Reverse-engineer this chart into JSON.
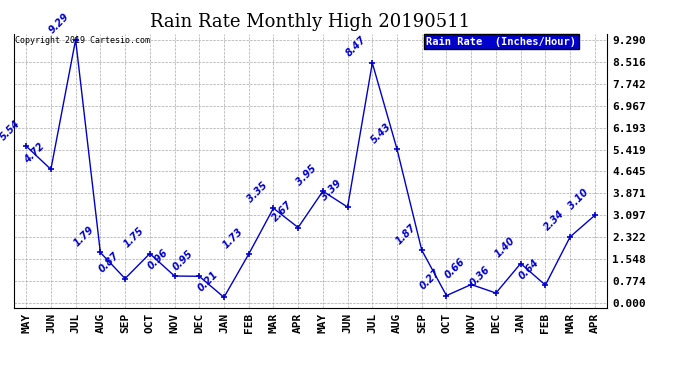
{
  "title": "Rain Rate Monthly High 20190511",
  "ylabel": "Rain Rate  (Inches/Hour)",
  "copyright": "Copyright 2019 Cartesio.com",
  "months": [
    "MAY",
    "JUN",
    "JUL",
    "AUG",
    "SEP",
    "OCT",
    "NOV",
    "DEC",
    "JAN",
    "FEB",
    "MAR",
    "APR",
    "MAY",
    "JUN",
    "JUL",
    "AUG",
    "SEP",
    "OCT",
    "NOV",
    "DEC",
    "JAN",
    "FEB",
    "MAR",
    "APR"
  ],
  "values": [
    5.54,
    4.72,
    9.29,
    1.79,
    0.87,
    1.75,
    0.96,
    0.95,
    0.21,
    1.73,
    3.35,
    2.67,
    3.95,
    3.39,
    8.47,
    5.43,
    1.87,
    0.27,
    0.66,
    0.36,
    1.4,
    0.64,
    2.34,
    3.1
  ],
  "labels": [
    "5.54",
    "4.72",
    "9.29",
    "1.79",
    "0.87",
    "1.75",
    "0.96",
    "0.95",
    "0.21",
    "1.73",
    "3.35",
    "2.67",
    "3.95",
    "3.39",
    "8.47",
    "5.43",
    "1.87",
    "0.27",
    "0.66",
    "0.36",
    "1.40",
    "0.64",
    "2.34",
    "3.10"
  ],
  "line_color": "#0000cc",
  "marker_color": "#0000cc",
  "label_color": "#0000cc",
  "background_color": "#ffffff",
  "grid_color": "#aaaaaa",
  "legend_bg": "#0000cc",
  "legend_text_color": "#ffffff",
  "ylim_min": 0.0,
  "ylim_max": 9.29,
  "yticks": [
    0.0,
    0.774,
    1.548,
    2.322,
    3.097,
    3.871,
    4.645,
    5.419,
    6.193,
    6.967,
    7.742,
    8.516,
    9.29
  ],
  "title_fontsize": 13,
  "label_fontsize": 7,
  "tick_fontsize": 8,
  "xtick_fontsize": 8
}
